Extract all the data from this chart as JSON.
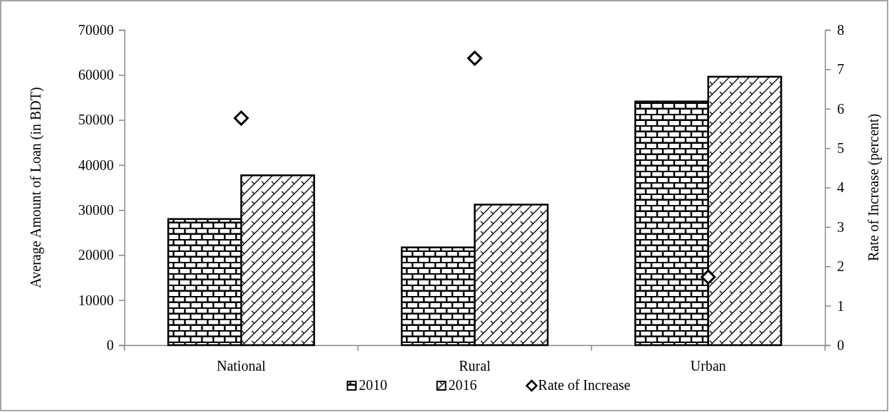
{
  "chart_data": {
    "type": "bar",
    "categories": [
      "National",
      "Rural",
      "Urban"
    ],
    "series": [
      {
        "name": "2010",
        "color": "#000000",
        "values": [
          28000,
          21700,
          54100
        ]
      },
      {
        "name": "2016",
        "color": "#000000",
        "values": [
          37700,
          31200,
          59600
        ]
      },
      {
        "name": "Rate of Increase",
        "type": "scatter",
        "axis": "y2",
        "marker": "diamond",
        "color": "#000000",
        "values": [
          5.76,
          7.28,
          1.73
        ]
      }
    ],
    "ylabel": "Average Amount of Loan (in BDT)",
    "y2label": "Rate of Increase (percent)",
    "ylim": [
      0,
      70000
    ],
    "yticks": [
      0,
      10000,
      20000,
      30000,
      40000,
      50000,
      60000,
      70000
    ],
    "y2lim": [
      0,
      8
    ],
    "y2ticks": [
      0,
      1,
      2,
      3,
      4,
      5,
      6,
      7,
      8
    ],
    "legend": "bottom"
  }
}
